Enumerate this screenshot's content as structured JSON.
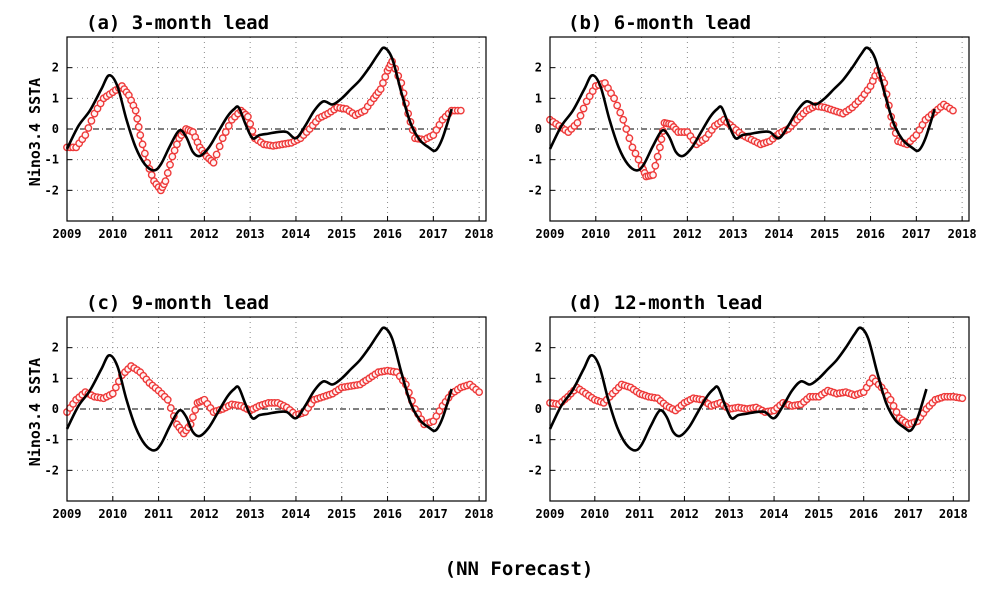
{
  "figure": {
    "caption": "(NN Forecast)"
  },
  "style": {
    "observed_color": "#000000",
    "forecast_color": "#ee3a3a"
  },
  "chart_data": [
    {
      "type": "line",
      "title": "(a) 3-month lead",
      "ylabel": "Nino3.4 SSTA",
      "xlabel": "",
      "xlim": [
        2009,
        2018.15
      ],
      "ylim": [
        -3,
        3
      ],
      "xticks": [
        "2009",
        "2010",
        "2011",
        "2012",
        "2013",
        "2014",
        "2015",
        "2016",
        "2017",
        "2018"
      ],
      "yticks": [
        "-2",
        "-1",
        "0",
        "1",
        "2"
      ],
      "grid": true,
      "zero_line": true,
      "series": [
        {
          "role": "observed",
          "marker": "none",
          "x": [
            2009.0,
            2009.25,
            2009.5,
            2009.75,
            2009.92,
            2010.1,
            2010.3,
            2010.5,
            2010.7,
            2010.9,
            2011.05,
            2011.25,
            2011.45,
            2011.6,
            2011.75,
            2011.9,
            2012.1,
            2012.3,
            2012.5,
            2012.65,
            2012.75,
            2012.9,
            2013.05,
            2013.2,
            2013.4,
            2013.6,
            2013.8,
            2014.0,
            2014.2,
            2014.4,
            2014.6,
            2014.8,
            2015.0,
            2015.2,
            2015.4,
            2015.6,
            2015.8,
            2015.93,
            2016.1,
            2016.3,
            2016.5,
            2016.7,
            2016.9,
            2017.05,
            2017.2,
            2017.4
          ],
          "y": [
            -0.65,
            0.1,
            0.6,
            1.3,
            1.75,
            1.4,
            0.3,
            -0.6,
            -1.15,
            -1.35,
            -1.15,
            -0.55,
            -0.05,
            -0.25,
            -0.75,
            -0.88,
            -0.6,
            -0.1,
            0.4,
            0.65,
            0.7,
            0.15,
            -0.3,
            -0.2,
            -0.15,
            -0.1,
            -0.1,
            -0.3,
            0.1,
            0.6,
            0.9,
            0.8,
            1.0,
            1.3,
            1.6,
            2.0,
            2.45,
            2.65,
            2.3,
            1.2,
            0.2,
            -0.35,
            -0.6,
            -0.7,
            -0.3,
            0.65
          ]
        },
        {
          "role": "forecast",
          "marker": "circle",
          "x": [
            2009.0,
            2009.2,
            2009.4,
            2009.6,
            2009.8,
            2010.0,
            2010.2,
            2010.35,
            2010.5,
            2010.6,
            2010.75,
            2010.9,
            2011.05,
            2011.15,
            2011.3,
            2011.45,
            2011.6,
            2011.75,
            2011.9,
            2012.05,
            2012.2,
            2012.4,
            2012.6,
            2012.8,
            2012.95,
            2013.1,
            2013.3,
            2013.5,
            2013.7,
            2013.9,
            2014.1,
            2014.3,
            2014.5,
            2014.7,
            2014.9,
            2015.1,
            2015.3,
            2015.5,
            2015.7,
            2015.85,
            2016.0,
            2016.1,
            2016.3,
            2016.45,
            2016.6,
            2016.8,
            2017.0,
            2017.2,
            2017.4,
            2017.6
          ],
          "y": [
            -0.6,
            -0.6,
            -0.2,
            0.5,
            1.0,
            1.2,
            1.4,
            1.1,
            0.6,
            -0.2,
            -1.1,
            -1.7,
            -2.0,
            -1.7,
            -0.9,
            -0.3,
            0.0,
            -0.1,
            -0.6,
            -0.9,
            -1.1,
            -0.3,
            0.3,
            0.6,
            0.4,
            -0.3,
            -0.5,
            -0.55,
            -0.5,
            -0.45,
            -0.3,
            0.0,
            0.35,
            0.5,
            0.7,
            0.65,
            0.45,
            0.6,
            1.0,
            1.3,
            1.9,
            2.2,
            1.5,
            0.5,
            -0.3,
            -0.35,
            -0.2,
            0.3,
            0.6,
            0.6
          ]
        }
      ]
    },
    {
      "type": "line",
      "title": "(b) 6-month lead",
      "ylabel": "",
      "xlabel": "",
      "xlim": [
        2009,
        2018.15
      ],
      "ylim": [
        -3,
        3
      ],
      "xticks": [
        "2009",
        "2010",
        "2011",
        "2012",
        "2013",
        "2014",
        "2015",
        "2016",
        "2017",
        "2018"
      ],
      "yticks": [
        "-2",
        "-1",
        "0",
        "1",
        "2"
      ],
      "grid": true,
      "zero_line": true,
      "series": [
        {
          "role": "observed",
          "marker": "none",
          "x": [
            2009.0,
            2009.25,
            2009.5,
            2009.75,
            2009.92,
            2010.1,
            2010.3,
            2010.5,
            2010.7,
            2010.9,
            2011.05,
            2011.25,
            2011.45,
            2011.6,
            2011.75,
            2011.9,
            2012.1,
            2012.3,
            2012.5,
            2012.65,
            2012.75,
            2012.9,
            2013.05,
            2013.2,
            2013.4,
            2013.6,
            2013.8,
            2014.0,
            2014.2,
            2014.4,
            2014.6,
            2014.8,
            2015.0,
            2015.2,
            2015.4,
            2015.6,
            2015.8,
            2015.93,
            2016.1,
            2016.3,
            2016.5,
            2016.7,
            2016.9,
            2017.05,
            2017.2,
            2017.4
          ],
          "y": [
            -0.65,
            0.1,
            0.6,
            1.3,
            1.75,
            1.4,
            0.3,
            -0.6,
            -1.15,
            -1.35,
            -1.15,
            -0.55,
            -0.05,
            -0.25,
            -0.75,
            -0.88,
            -0.6,
            -0.1,
            0.4,
            0.65,
            0.7,
            0.15,
            -0.3,
            -0.2,
            -0.15,
            -0.1,
            -0.1,
            -0.3,
            0.1,
            0.6,
            0.9,
            0.8,
            1.0,
            1.3,
            1.6,
            2.0,
            2.45,
            2.65,
            2.3,
            1.2,
            0.2,
            -0.35,
            -0.6,
            -0.7,
            -0.3,
            0.65
          ]
        },
        {
          "role": "forecast",
          "marker": "circle",
          "x": [
            2009.0,
            2009.2,
            2009.4,
            2009.6,
            2009.8,
            2010.0,
            2010.2,
            2010.4,
            2010.6,
            2010.8,
            2011.0,
            2011.1,
            2011.25,
            2011.4,
            2011.5,
            2011.65,
            2011.8,
            2012.0,
            2012.2,
            2012.4,
            2012.6,
            2012.8,
            2013.0,
            2013.2,
            2013.4,
            2013.6,
            2013.8,
            2014.0,
            2014.2,
            2014.4,
            2014.6,
            2014.8,
            2015.0,
            2015.2,
            2015.4,
            2015.6,
            2015.8,
            2016.0,
            2016.15,
            2016.3,
            2016.45,
            2016.6,
            2016.8,
            2017.0,
            2017.2,
            2017.4,
            2017.6,
            2017.8
          ],
          "y": [
            0.3,
            0.1,
            -0.1,
            0.2,
            0.9,
            1.4,
            1.5,
            1.0,
            0.3,
            -0.6,
            -1.2,
            -1.55,
            -1.5,
            -0.6,
            0.2,
            0.15,
            -0.1,
            -0.1,
            -0.5,
            -0.3,
            0.1,
            0.3,
            0.05,
            -0.2,
            -0.35,
            -0.5,
            -0.4,
            -0.15,
            0.0,
            0.3,
            0.6,
            0.75,
            0.7,
            0.6,
            0.5,
            0.7,
            1.0,
            1.4,
            1.9,
            1.5,
            0.4,
            -0.4,
            -0.5,
            -0.2,
            0.3,
            0.55,
            0.8,
            0.6
          ]
        }
      ]
    },
    {
      "type": "line",
      "title": "(c) 9-month lead",
      "ylabel": "Nino3.4 SSTA",
      "xlabel": "",
      "xlim": [
        2009,
        2018.15
      ],
      "ylim": [
        -3,
        3
      ],
      "xticks": [
        "2009",
        "2010",
        "2011",
        "2012",
        "2013",
        "2014",
        "2015",
        "2016",
        "2017",
        "2018"
      ],
      "yticks": [
        "-2",
        "-1",
        "0",
        "1",
        "2"
      ],
      "grid": true,
      "zero_line": true,
      "series": [
        {
          "role": "observed",
          "marker": "none",
          "x": [
            2009.0,
            2009.25,
            2009.5,
            2009.75,
            2009.92,
            2010.1,
            2010.3,
            2010.5,
            2010.7,
            2010.9,
            2011.05,
            2011.25,
            2011.45,
            2011.6,
            2011.75,
            2011.9,
            2012.1,
            2012.3,
            2012.5,
            2012.65,
            2012.75,
            2012.9,
            2013.05,
            2013.2,
            2013.4,
            2013.6,
            2013.8,
            2014.0,
            2014.2,
            2014.4,
            2014.6,
            2014.8,
            2015.0,
            2015.2,
            2015.4,
            2015.6,
            2015.8,
            2015.93,
            2016.1,
            2016.3,
            2016.5,
            2016.7,
            2016.9,
            2017.05,
            2017.2,
            2017.4
          ],
          "y": [
            -0.65,
            0.1,
            0.6,
            1.3,
            1.75,
            1.4,
            0.3,
            -0.6,
            -1.15,
            -1.35,
            -1.15,
            -0.55,
            -0.05,
            -0.25,
            -0.75,
            -0.88,
            -0.6,
            -0.1,
            0.4,
            0.65,
            0.7,
            0.15,
            -0.3,
            -0.2,
            -0.15,
            -0.1,
            -0.1,
            -0.3,
            0.1,
            0.6,
            0.9,
            0.8,
            1.0,
            1.3,
            1.6,
            2.0,
            2.45,
            2.65,
            2.3,
            1.2,
            0.2,
            -0.35,
            -0.6,
            -0.7,
            -0.3,
            0.65
          ]
        },
        {
          "role": "forecast",
          "marker": "circle",
          "x": [
            2009.0,
            2009.2,
            2009.4,
            2009.6,
            2009.8,
            2010.0,
            2010.2,
            2010.4,
            2010.6,
            2010.8,
            2011.0,
            2011.2,
            2011.4,
            2011.55,
            2011.7,
            2011.85,
            2012.0,
            2012.2,
            2012.4,
            2012.6,
            2012.8,
            2013.0,
            2013.2,
            2013.4,
            2013.6,
            2013.8,
            2014.0,
            2014.2,
            2014.4,
            2014.6,
            2014.8,
            2015.0,
            2015.2,
            2015.4,
            2015.6,
            2015.8,
            2016.0,
            2016.2,
            2016.4,
            2016.6,
            2016.8,
            2017.0,
            2017.2,
            2017.4,
            2017.6,
            2017.8,
            2018.0
          ],
          "y": [
            -0.1,
            0.3,
            0.55,
            0.4,
            0.35,
            0.5,
            1.1,
            1.4,
            1.2,
            0.85,
            0.6,
            0.3,
            -0.5,
            -0.8,
            -0.5,
            0.2,
            0.3,
            -0.1,
            0.0,
            0.15,
            0.1,
            -0.05,
            0.1,
            0.2,
            0.2,
            0.05,
            -0.2,
            -0.1,
            0.3,
            0.4,
            0.5,
            0.7,
            0.75,
            0.8,
            1.0,
            1.2,
            1.25,
            1.2,
            0.8,
            0.0,
            -0.5,
            -0.4,
            0.1,
            0.5,
            0.7,
            0.8,
            0.55
          ]
        }
      ]
    },
    {
      "type": "line",
      "title": "(d) 12-month lead",
      "ylabel": "",
      "xlabel": "",
      "xlim": [
        2009,
        2018.35
      ],
      "ylim": [
        -3,
        3
      ],
      "xticks": [
        "2009",
        "2010",
        "2011",
        "2012",
        "2013",
        "2014",
        "2015",
        "2016",
        "2017",
        "2018"
      ],
      "yticks": [
        "-2",
        "-1",
        "0",
        "1",
        "2"
      ],
      "grid": true,
      "zero_line": true,
      "series": [
        {
          "role": "observed",
          "marker": "none",
          "x": [
            2009.0,
            2009.25,
            2009.5,
            2009.75,
            2009.92,
            2010.1,
            2010.3,
            2010.5,
            2010.7,
            2010.9,
            2011.05,
            2011.25,
            2011.45,
            2011.6,
            2011.75,
            2011.9,
            2012.1,
            2012.3,
            2012.5,
            2012.65,
            2012.75,
            2012.9,
            2013.05,
            2013.2,
            2013.4,
            2013.6,
            2013.8,
            2014.0,
            2014.2,
            2014.4,
            2014.6,
            2014.8,
            2015.0,
            2015.2,
            2015.4,
            2015.6,
            2015.8,
            2015.93,
            2016.1,
            2016.3,
            2016.5,
            2016.7,
            2016.9,
            2017.05,
            2017.2,
            2017.4
          ],
          "y": [
            -0.65,
            0.1,
            0.6,
            1.3,
            1.75,
            1.4,
            0.3,
            -0.6,
            -1.15,
            -1.35,
            -1.15,
            -0.55,
            -0.05,
            -0.25,
            -0.75,
            -0.88,
            -0.6,
            -0.1,
            0.4,
            0.65,
            0.7,
            0.15,
            -0.3,
            -0.2,
            -0.15,
            -0.1,
            -0.1,
            -0.3,
            0.1,
            0.6,
            0.9,
            0.8,
            1.0,
            1.3,
            1.6,
            2.0,
            2.45,
            2.65,
            2.3,
            1.2,
            0.2,
            -0.35,
            -0.6,
            -0.7,
            -0.3,
            0.65
          ]
        },
        {
          "role": "forecast",
          "marker": "circle",
          "x": [
            2009.0,
            2009.2,
            2009.4,
            2009.6,
            2009.8,
            2010.0,
            2010.2,
            2010.4,
            2010.6,
            2010.8,
            2011.0,
            2011.2,
            2011.4,
            2011.6,
            2011.8,
            2012.0,
            2012.2,
            2012.4,
            2012.6,
            2012.8,
            2013.0,
            2013.2,
            2013.4,
            2013.6,
            2013.8,
            2014.0,
            2014.2,
            2014.4,
            2014.6,
            2014.8,
            2015.0,
            2015.2,
            2015.4,
            2015.6,
            2015.8,
            2016.0,
            2016.2,
            2016.4,
            2016.6,
            2016.8,
            2017.0,
            2017.2,
            2017.4,
            2017.6,
            2017.8,
            2018.0,
            2018.2
          ],
          "y": [
            0.2,
            0.15,
            0.4,
            0.7,
            0.5,
            0.3,
            0.2,
            0.5,
            0.8,
            0.7,
            0.5,
            0.4,
            0.35,
            0.1,
            -0.05,
            0.2,
            0.35,
            0.3,
            0.1,
            0.2,
            0.0,
            0.05,
            0.0,
            0.05,
            -0.1,
            -0.05,
            0.2,
            0.1,
            0.15,
            0.4,
            0.4,
            0.6,
            0.5,
            0.55,
            0.45,
            0.55,
            1.0,
            0.7,
            0.3,
            -0.3,
            -0.5,
            -0.4,
            0.0,
            0.3,
            0.4,
            0.4,
            0.35
          ]
        }
      ]
    }
  ]
}
